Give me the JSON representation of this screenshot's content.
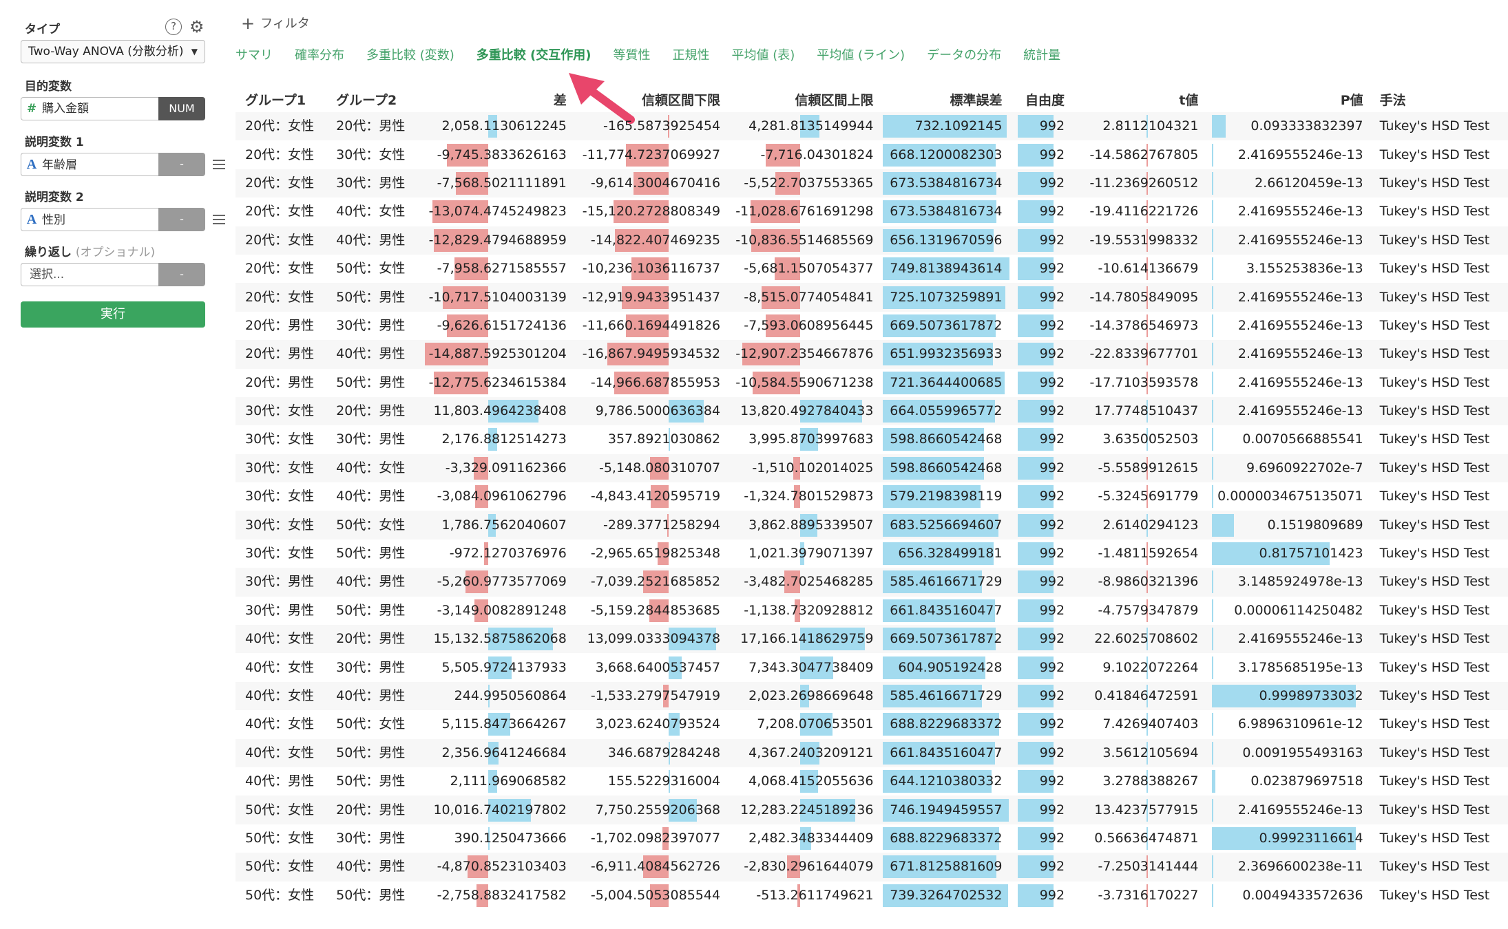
{
  "sidebar": {
    "type_label": "タイプ",
    "help_icon": "?",
    "type_value": "Two-Way ANOVA (分散分析)",
    "target_label": "目的変数",
    "target_var": "購入金額",
    "target_tag": "NUM",
    "expl1_label": "説明変数 1",
    "expl1_var": "年齢層",
    "expl1_tag": "-",
    "expl2_label": "説明変数 2",
    "expl2_var": "性別",
    "expl2_tag": "-",
    "repeat_label": "繰り返し",
    "repeat_optional": "(オプショナル)",
    "repeat_placeholder": "選択...",
    "repeat_tag": "-",
    "run_label": "実行"
  },
  "filter": {
    "label": "フィルタ"
  },
  "tabs": [
    {
      "label": "サマリ"
    },
    {
      "label": "確率分布"
    },
    {
      "label": "多重比較 (変数)"
    },
    {
      "label": "多重比較 (交互作用)"
    },
    {
      "label": "等質性"
    },
    {
      "label": "正規性"
    },
    {
      "label": "平均値 (表)"
    },
    {
      "label": "平均値 (ライン)"
    },
    {
      "label": "データの分布"
    },
    {
      "label": "統計量"
    }
  ],
  "active_tab": 3,
  "colors": {
    "accent": "#3aa55f",
    "positive_bar": "#a3dbef",
    "negative_bar": "#eb9d9b",
    "arrow": "#e8466b"
  },
  "table": {
    "headers": [
      "グループ1",
      "グループ2",
      "差",
      "信頼区間下限",
      "信頼区間上限",
      "標準誤差",
      "自由度",
      "t値",
      "P値",
      "手法"
    ],
    "rows": [
      [
        "20代：女性",
        "20代：男性",
        "2,058.1130612245",
        "-165.5873925454",
        "4,281.8135149944",
        "732.1092145",
        "992",
        "2.8112104321",
        "0.093333832397",
        "Tukey's HSD Test"
      ],
      [
        "20代：女性",
        "30代：女性",
        "-9,745.3833626163",
        "-11,774.7237069927",
        "-7,716.04301824",
        "668.1200082303",
        "992",
        "-14.5862767805",
        "2.4169555246e-13",
        "Tukey's HSD Test"
      ],
      [
        "20代：女性",
        "30代：男性",
        "-7,568.5021111891",
        "-9,614.3004670416",
        "-5,522.7037553365",
        "673.5384816734",
        "992",
        "-11.2369260512",
        "2.66120459e-13",
        "Tukey's HSD Test"
      ],
      [
        "20代：女性",
        "40代：女性",
        "-13,074.4745249823",
        "-15,120.2728808349",
        "-11,028.6761691298",
        "673.5384816734",
        "992",
        "-19.4116221726",
        "2.4169555246e-13",
        "Tukey's HSD Test"
      ],
      [
        "20代：女性",
        "40代：男性",
        "-12,829.4794688959",
        "-14,822.407469235",
        "-10,836.5514685569",
        "656.1319670596",
        "992",
        "-19.5531998332",
        "2.4169555246e-13",
        "Tukey's HSD Test"
      ],
      [
        "20代：女性",
        "50代：女性",
        "-7,958.6271585557",
        "-10,236.1036116737",
        "-5,681.1507054377",
        "749.8138943614",
        "992",
        "-10.614136679",
        "3.155253836e-13",
        "Tukey's HSD Test"
      ],
      [
        "20代：女性",
        "50代：男性",
        "-10,717.5104003139",
        "-12,919.9433951437",
        "-8,515.0774054841",
        "725.1073259891",
        "992",
        "-14.7805849095",
        "2.4169555246e-13",
        "Tukey's HSD Test"
      ],
      [
        "20代：男性",
        "30代：男性",
        "-9,626.6151724136",
        "-11,660.1694491826",
        "-7,593.0608956445",
        "669.5073617872",
        "992",
        "-14.3786546973",
        "2.4169555246e-13",
        "Tukey's HSD Test"
      ],
      [
        "20代：男性",
        "40代：男性",
        "-14,887.5925301204",
        "-16,867.9495934532",
        "-12,907.2354667876",
        "651.9932356933",
        "992",
        "-22.8339677701",
        "2.4169555246e-13",
        "Tukey's HSD Test"
      ],
      [
        "20代：男性",
        "50代：男性",
        "-12,775.6234615384",
        "-14,966.687855953",
        "-10,584.5590671238",
        "721.3644400685",
        "992",
        "-17.7103593578",
        "2.4169555246e-13",
        "Tukey's HSD Test"
      ],
      [
        "30代：女性",
        "20代：男性",
        "11,803.4964238408",
        "9,786.5000636384",
        "13,820.4927840433",
        "664.0559965772",
        "992",
        "17.7748510437",
        "2.4169555246e-13",
        "Tukey's HSD Test"
      ],
      [
        "30代：女性",
        "30代：男性",
        "2,176.8812514273",
        "357.8921030862",
        "3,995.8703997683",
        "598.8660542468",
        "992",
        "3.6350052503",
        "0.0070566885541",
        "Tukey's HSD Test"
      ],
      [
        "30代：女性",
        "40代：女性",
        "-3,329.091162366",
        "-5,148.080310707",
        "-1,510.102014025",
        "598.8660542468",
        "992",
        "-5.5589912615",
        "9.6960922702e-7",
        "Tukey's HSD Test"
      ],
      [
        "30代：女性",
        "40代：男性",
        "-3,084.0961062796",
        "-4,843.4120595719",
        "-1,324.7801529873",
        "579.2198398119",
        "992",
        "-5.3245691779",
        "0.0000034675135071",
        "Tukey's HSD Test"
      ],
      [
        "30代：女性",
        "50代：女性",
        "1,786.7562040607",
        "-289.3771258294",
        "3,862.8895339507",
        "683.5256694607",
        "992",
        "2.6140294123",
        "0.1519809689",
        "Tukey's HSD Test"
      ],
      [
        "30代：女性",
        "50代：男性",
        "-972.1270376976",
        "-2,965.6519825348",
        "1,021.3979071397",
        "656.328499181",
        "992",
        "-1.4811592654",
        "0.81757101423",
        "Tukey's HSD Test"
      ],
      [
        "30代：男性",
        "40代：男性",
        "-5,260.9773577069",
        "-7,039.2521685852",
        "-3,482.7025468285",
        "585.4616671729",
        "992",
        "-8.9860321396",
        "3.1485924978e-13",
        "Tukey's HSD Test"
      ],
      [
        "30代：男性",
        "50代：男性",
        "-3,149.0082891248",
        "-5,159.2844853685",
        "-1,138.7320928812",
        "661.8435160477",
        "992",
        "-4.7579347879",
        "0.00006114250482",
        "Tukey's HSD Test"
      ],
      [
        "40代：女性",
        "20代：男性",
        "15,132.5875862068",
        "13,099.0333094378",
        "17,166.1418629759",
        "669.5073617872",
        "992",
        "22.6025708602",
        "2.4169555246e-13",
        "Tukey's HSD Test"
      ],
      [
        "40代：女性",
        "30代：男性",
        "5,505.9724137933",
        "3,668.6400537457",
        "7,343.3047738409",
        "604.905192428",
        "992",
        "9.1022072264",
        "3.1785685195e-13",
        "Tukey's HSD Test"
      ],
      [
        "40代：女性",
        "40代：男性",
        "244.9950560864",
        "-1,533.2797547919",
        "2,023.2698669648",
        "585.4616671729",
        "992",
        "0.41846472591",
        "0.99989733032",
        "Tukey's HSD Test"
      ],
      [
        "40代：女性",
        "50代：女性",
        "5,115.8473664267",
        "3,023.6240793524",
        "7,208.070653501",
        "688.8229683372",
        "992",
        "7.4269407403",
        "6.9896310961e-12",
        "Tukey's HSD Test"
      ],
      [
        "40代：女性",
        "50代：男性",
        "2,356.9641246684",
        "346.6879284248",
        "4,367.2403209121",
        "661.8435160477",
        "992",
        "3.5612105694",
        "0.0091955493163",
        "Tukey's HSD Test"
      ],
      [
        "40代：男性",
        "50代：男性",
        "2,111.969068582",
        "155.5229316004",
        "4,068.4152055636",
        "644.1210380332",
        "992",
        "3.2788388267",
        "0.023879697518",
        "Tukey's HSD Test"
      ],
      [
        "50代：女性",
        "20代：男性",
        "10,016.7402197802",
        "7,750.2559206368",
        "12,283.2245189236",
        "746.1949459557",
        "992",
        "13.4237577915",
        "2.4169555246e-13",
        "Tukey's HSD Test"
      ],
      [
        "50代：女性",
        "30代：男性",
        "390.1250473666",
        "-1,702.0982397077",
        "2,482.3483344409",
        "688.8229683372",
        "992",
        "0.56636474871",
        "0.99923116614",
        "Tukey's HSD Test"
      ],
      [
        "50代：女性",
        "40代：男性",
        "-4,870.8523103403",
        "-6,911.4084562726",
        "-2,830.2961644079",
        "671.8125881609",
        "992",
        "-7.2503141444",
        "2.3696600238e-11",
        "Tukey's HSD Test"
      ],
      [
        "50代：女性",
        "50代：男性",
        "-2,758.8832417582",
        "-5,004.5053085544",
        "-513.2611749621",
        "739.3264702532",
        "992",
        "-3.7316170227",
        "0.0049433572636",
        "Tukey's HSD Test"
      ]
    ]
  }
}
